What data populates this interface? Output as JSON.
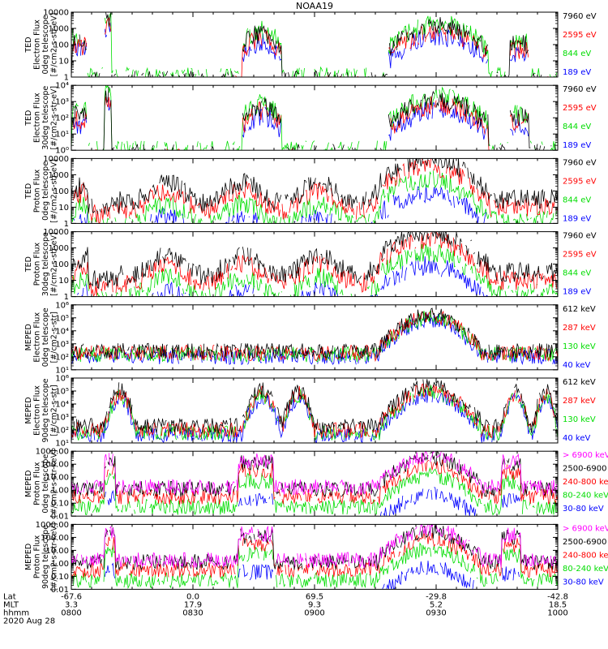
{
  "chart_data": {
    "type": "line",
    "title": "NOAA19",
    "date": "2020 Aug 28",
    "x_range_minutes": [
      0,
      120
    ],
    "panels": [
      {
        "ylabel": [
          "TED",
          "Electron Flux",
          "0deg telescope",
          "[#/cm2-s-str-eV]"
        ],
        "ylim": [
          1,
          10000
        ],
        "yticks": [
          {
            "v": 10000,
            "label": "10000"
          },
          {
            "v": 1000,
            "label": "1000"
          },
          {
            "v": 100,
            "label": "100"
          },
          {
            "v": 10,
            "label": "10"
          },
          {
            "v": 1,
            "label": "1"
          }
        ],
        "legend": [
          {
            "label": "7960 eV",
            "color": "#000000"
          },
          {
            "label": "2595 eV",
            "color": "#ff0000"
          },
          {
            "label": "844 eV",
            "color": "#00dd00"
          },
          {
            "label": "189 eV",
            "color": "#0000ff"
          }
        ]
      },
      {
        "ylabel": [
          "TED",
          "Electron Flux",
          "30deg telescope",
          "[#/cm2-s-str-eV]"
        ],
        "ylim": [
          1,
          10000
        ],
        "yticks": [
          {
            "v": 10000,
            "label": "10⁴"
          },
          {
            "v": 1000,
            "label": "10³"
          },
          {
            "v": 100,
            "label": "10²"
          },
          {
            "v": 10,
            "label": "10¹"
          },
          {
            "v": 1,
            "label": "10⁰"
          }
        ],
        "legend": [
          {
            "label": "7960 eV",
            "color": "#000000"
          },
          {
            "label": "2595 eV",
            "color": "#ff0000"
          },
          {
            "label": "844 eV",
            "color": "#00dd00"
          },
          {
            "label": "189 eV",
            "color": "#0000ff"
          }
        ]
      },
      {
        "ylabel": [
          "TED",
          "Proton Flux",
          "0deg telescope",
          "[#/cm2-s-str-eV]"
        ],
        "ylim": [
          1,
          10000
        ],
        "yticks": [
          {
            "v": 10000,
            "label": "10000"
          },
          {
            "v": 1000,
            "label": "1000"
          },
          {
            "v": 100,
            "label": "100"
          },
          {
            "v": 10,
            "label": "10"
          },
          {
            "v": 1,
            "label": "1"
          }
        ],
        "legend": [
          {
            "label": "7960 eV",
            "color": "#000000"
          },
          {
            "label": "2595 eV",
            "color": "#ff0000"
          },
          {
            "label": "844 eV",
            "color": "#00dd00"
          },
          {
            "label": "189 eV",
            "color": "#0000ff"
          }
        ]
      },
      {
        "ylabel": [
          "TED",
          "Proton Flux",
          "30deg telescope",
          "[#/cm2-s-str-eV]"
        ],
        "ylim": [
          1,
          10000
        ],
        "yticks": [
          {
            "v": 10000,
            "label": "10000"
          },
          {
            "v": 1000,
            "label": "1000"
          },
          {
            "v": 100,
            "label": "100"
          },
          {
            "v": 10,
            "label": "10"
          },
          {
            "v": 1,
            "label": "1"
          }
        ],
        "legend": [
          {
            "label": "7960 eV",
            "color": "#000000"
          },
          {
            "label": "2595 eV",
            "color": "#ff0000"
          },
          {
            "label": "844 eV",
            "color": "#00dd00"
          },
          {
            "label": "189 eV",
            "color": "#0000ff"
          }
        ]
      },
      {
        "ylabel": [
          "MEPED",
          "Electron Flux",
          "0deg telescope",
          "[#/cm2-s-str]"
        ],
        "ylim": [
          10,
          1000000
        ],
        "yticks": [
          {
            "v": 1000000,
            "label": "10⁶"
          },
          {
            "v": 100000,
            "label": "10⁵"
          },
          {
            "v": 10000,
            "label": "10⁴"
          },
          {
            "v": 1000,
            "label": "10³"
          },
          {
            "v": 100,
            "label": "10²"
          },
          {
            "v": 10,
            "label": "10¹"
          }
        ],
        "legend": [
          {
            "label": "612 keV",
            "color": "#000000"
          },
          {
            "label": "287 keV",
            "color": "#ff0000"
          },
          {
            "label": "130 keV",
            "color": "#00dd00"
          },
          {
            "label": "40 keV",
            "color": "#0000ff"
          }
        ]
      },
      {
        "ylabel": [
          "MEPED",
          "Electron Flux",
          "90deg telescope",
          "[#/cm2-s-str]"
        ],
        "ylim": [
          10,
          1000000
        ],
        "yticks": [
          {
            "v": 1000000,
            "label": "10⁶"
          },
          {
            "v": 100000,
            "label": "10⁵"
          },
          {
            "v": 10000,
            "label": "10⁴"
          },
          {
            "v": 1000,
            "label": "10³"
          },
          {
            "v": 100,
            "label": "10²"
          },
          {
            "v": 10,
            "label": "10¹"
          }
        ],
        "legend": [
          {
            "label": "612 keV",
            "color": "#000000"
          },
          {
            "label": "287 keV",
            "color": "#ff0000"
          },
          {
            "label": "130 keV",
            "color": "#00dd00"
          },
          {
            "label": "40 keV",
            "color": "#0000ff"
          }
        ]
      },
      {
        "ylabel": [
          "MEPED",
          "Proton Flux",
          "0deg telescope",
          "[#/cm2-s-str-keV]"
        ],
        "ylim": [
          0.01,
          1000
        ],
        "yticks": [
          {
            "v": 1000,
            "label": "1000.00"
          },
          {
            "v": 100,
            "label": "100.00"
          },
          {
            "v": 10,
            "label": "10.00"
          },
          {
            "v": 1,
            "label": "1.00"
          },
          {
            "v": 0.1,
            "label": "0.10"
          },
          {
            "v": 0.01,
            "label": "0.01"
          }
        ],
        "legend": [
          {
            "label": "> 6900 keV",
            "color": "#ff00ff"
          },
          {
            "label": "2500-6900",
            "color": "#000000"
          },
          {
            "label": "240-800 keV",
            "color": "#ff0000"
          },
          {
            "label": "80-240 keV",
            "color": "#00dd00"
          },
          {
            "label": "30-80 keV",
            "color": "#0000ff"
          }
        ]
      },
      {
        "ylabel": [
          "MEPED",
          "Proton Flux",
          "90deg telescope",
          "[#/cm2-s-str-keV]"
        ],
        "ylim": [
          0.01,
          1000
        ],
        "yticks": [
          {
            "v": 1000,
            "label": "1000.00"
          },
          {
            "v": 100,
            "label": "100.00"
          },
          {
            "v": 10,
            "label": "10.00"
          },
          {
            "v": 1,
            "label": "1.00"
          },
          {
            "v": 0.1,
            "label": "0.10"
          },
          {
            "v": 0.01,
            "label": "0.01"
          }
        ],
        "legend": [
          {
            "label": "> 6900 keV",
            "color": "#ff00ff"
          },
          {
            "label": "2500-6900",
            "color": "#000000"
          },
          {
            "label": "240-800 keV",
            "color": "#ff0000"
          },
          {
            "label": "80-240 keV",
            "color": "#00dd00"
          },
          {
            "label": "30-80 keV",
            "color": "#0000ff"
          }
        ]
      }
    ],
    "x_axis": {
      "row_labels": [
        "Lat",
        "MLT",
        "hhmm",
        "2020 Aug 28"
      ],
      "ticks": [
        {
          "minutes": 0,
          "lat": "-67.6",
          "mlt": "3.3",
          "hhmm": "0800"
        },
        {
          "minutes": 30,
          "lat": "0.0",
          "mlt": "17.9",
          "hhmm": "0830"
        },
        {
          "minutes": 60,
          "lat": "69.5",
          "mlt": "9.3",
          "hhmm": "0900"
        },
        {
          "minutes": 90,
          "lat": "-29.8",
          "mlt": "5.2",
          "hhmm": "0930"
        },
        {
          "minutes": 120,
          "lat": "-42.8",
          "mlt": "18.5",
          "hhmm": "1000"
        }
      ]
    }
  }
}
